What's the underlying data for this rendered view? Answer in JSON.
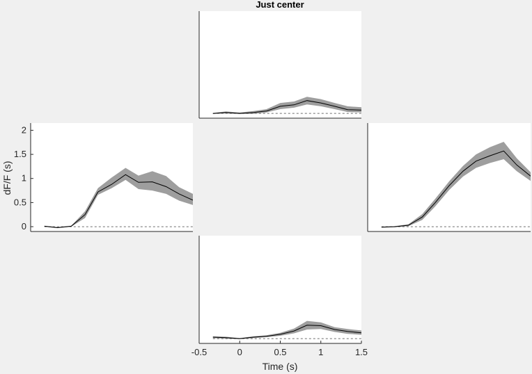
{
  "title": "Just center",
  "xlabel": "Time (s)",
  "ylabel": "dF/F (s)",
  "chart_data": {
    "type": "line",
    "title": "Just center",
    "xlabel": "Time (s)",
    "ylabel": "dF/F (s)",
    "xlim": [
      -0.5,
      1.5
    ],
    "ylim": [
      -0.1,
      2.15
    ],
    "xticks": [
      -0.5,
      0,
      0.5,
      1,
      1.5
    ],
    "yticks": [
      0,
      0.5,
      1,
      1.5,
      2
    ],
    "baseline": 0,
    "line_color": "#000000",
    "band_color": "#9e9e9e",
    "baseline_color": "#6e6e6e",
    "x": [
      -0.33,
      -0.17,
      0,
      0.17,
      0.33,
      0.5,
      0.67,
      0.83,
      1.0,
      1.17,
      1.33,
      1.5
    ],
    "panels": [
      {
        "position": "top",
        "mean": [
          0.0,
          0.02,
          0.0,
          0.02,
          0.05,
          0.15,
          0.18,
          0.27,
          0.22,
          0.15,
          0.08,
          0.07
        ],
        "upper": [
          0.01,
          0.04,
          0.02,
          0.05,
          0.09,
          0.22,
          0.25,
          0.35,
          0.3,
          0.22,
          0.15,
          0.13
        ],
        "lower": [
          -0.01,
          0.0,
          -0.01,
          -0.01,
          0.02,
          0.09,
          0.12,
          0.19,
          0.15,
          0.09,
          0.03,
          0.02
        ]
      },
      {
        "position": "left",
        "mean": [
          0.01,
          -0.02,
          0.01,
          0.25,
          0.72,
          0.88,
          1.08,
          0.92,
          0.93,
          0.83,
          0.68,
          0.55
        ],
        "upper": [
          0.02,
          -0.01,
          0.02,
          0.32,
          0.8,
          1.02,
          1.22,
          1.06,
          1.15,
          1.05,
          0.82,
          0.68
        ],
        "lower": [
          0.0,
          -0.03,
          0.0,
          0.18,
          0.66,
          0.8,
          0.97,
          0.78,
          0.75,
          0.68,
          0.54,
          0.45
        ]
      },
      {
        "position": "right",
        "mean": [
          -0.01,
          0.0,
          0.03,
          0.2,
          0.5,
          0.85,
          1.15,
          1.36,
          1.47,
          1.57,
          1.28,
          1.05
        ],
        "upper": [
          0.0,
          0.01,
          0.05,
          0.26,
          0.58,
          0.94,
          1.26,
          1.5,
          1.65,
          1.76,
          1.42,
          1.13
        ],
        "lower": [
          -0.02,
          -0.01,
          0.01,
          0.14,
          0.42,
          0.76,
          1.04,
          1.22,
          1.32,
          1.4,
          1.15,
          0.95
        ]
      },
      {
        "position": "bottom",
        "mean": [
          0.03,
          0.02,
          0.0,
          0.03,
          0.05,
          0.09,
          0.16,
          0.28,
          0.27,
          0.19,
          0.15,
          0.12
        ],
        "upper": [
          0.05,
          0.04,
          0.01,
          0.05,
          0.07,
          0.12,
          0.21,
          0.37,
          0.34,
          0.24,
          0.2,
          0.17
        ],
        "lower": [
          0.01,
          0.0,
          -0.01,
          0.01,
          0.03,
          0.06,
          0.11,
          0.19,
          0.2,
          0.14,
          0.1,
          0.08
        ]
      }
    ]
  }
}
